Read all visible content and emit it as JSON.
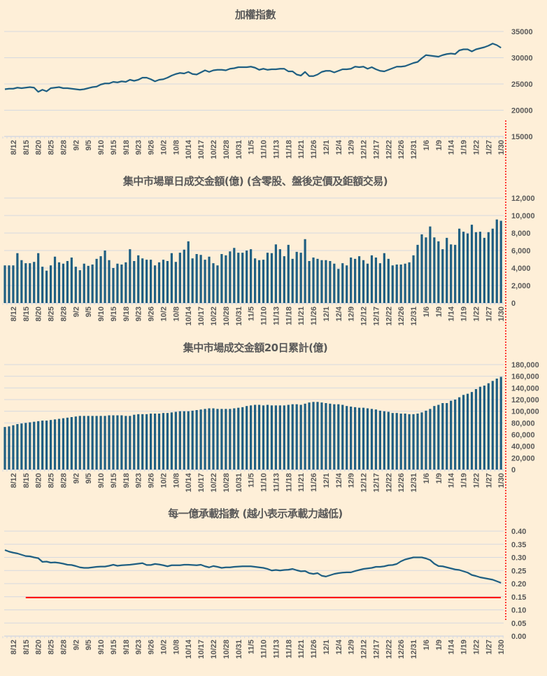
{
  "colors": {
    "background": "#FEEFD8",
    "series": "#1F5F82",
    "grid": "#D5D9E0",
    "threshold": "#FF0000",
    "divider": "#FF0000",
    "text": "#595959"
  },
  "chart_data": [
    {
      "type": "line",
      "title": "加權指數",
      "ylim": [
        15000,
        35000
      ],
      "yticks": [
        "35000",
        "30000",
        "25000",
        "20000",
        "15000"
      ],
      "ytick_values": [
        35000,
        30000,
        25000,
        20000,
        15000
      ],
      "values": [
        24000,
        24100,
        24100,
        24300,
        24200,
        24300,
        24400,
        24300,
        23500,
        23900,
        23600,
        24200,
        24300,
        24400,
        24200,
        24200,
        24100,
        24000,
        23900,
        24000,
        24200,
        24400,
        24500,
        24900,
        25100,
        25100,
        25400,
        25300,
        25500,
        25400,
        25800,
        25600,
        25800,
        26200,
        26200,
        25900,
        25500,
        25800,
        25900,
        26200,
        26600,
        26900,
        27100,
        27000,
        27300,
        26900,
        26800,
        27200,
        27600,
        27300,
        27600,
        27700,
        27700,
        27600,
        27900,
        28000,
        28200,
        28200,
        28200,
        28300,
        28100,
        27700,
        27900,
        27700,
        27800,
        27800,
        27900,
        27900,
        27400,
        27400,
        26800,
        26600,
        27300,
        26500,
        26500,
        26800,
        27300,
        27500,
        27500,
        27200,
        27500,
        27800,
        27800,
        27900,
        28300,
        28200,
        28300,
        27900,
        28200,
        27800,
        27500,
        27400,
        27700,
        28000,
        28300,
        28300,
        28400,
        28700,
        29000,
        29200,
        29900,
        30500,
        30400,
        30300,
        30200,
        30500,
        30700,
        30800,
        30700,
        31400,
        31600,
        31600,
        31200,
        31600,
        31800,
        32000,
        32300,
        32700,
        32400,
        31900
      ]
    },
    {
      "type": "bar",
      "title": "集中市場單日成交金額(億) (含零股、盤後定價及鉅額交易)",
      "ylim": [
        0,
        12000
      ],
      "yticks": [
        "12,000",
        "10,000",
        "8,000",
        "6,000",
        "4,000",
        "2,000",
        "0"
      ],
      "ytick_values": [
        12000,
        10000,
        8000,
        6000,
        4000,
        2000,
        0
      ],
      "values": [
        4300,
        4300,
        4300,
        5700,
        4900,
        4550,
        4550,
        4700,
        5700,
        4150,
        3700,
        4300,
        5300,
        4650,
        4500,
        4800,
        5200,
        4150,
        3750,
        4500,
        4250,
        4400,
        5050,
        5350,
        6000,
        4900,
        4000,
        4500,
        4400,
        4650,
        6150,
        4800,
        5450,
        5100,
        4950,
        4950,
        4300,
        4650,
        4950,
        4800,
        5700,
        4700,
        5750,
        6100,
        7050,
        5100,
        5600,
        5500,
        4950,
        5300,
        4550,
        4300,
        5600,
        5450,
        5900,
        6300,
        5750,
        5750,
        6000,
        6150,
        5100,
        4900,
        4950,
        5750,
        5700,
        6700,
        6150,
        5350,
        6650,
        5050,
        5850,
        5750,
        7300,
        4800,
        5200,
        5050,
        4900,
        4900,
        4800,
        4500,
        3900,
        4550,
        4300,
        5200,
        5050,
        5350,
        4900,
        4500,
        5450,
        5200,
        4550,
        5700,
        5050,
        4300,
        4400,
        4400,
        4500,
        4650,
        5450,
        6650,
        7850,
        7500,
        8750,
        7500,
        7050,
        6150,
        7450,
        6700,
        6650,
        8500,
        8150,
        7950,
        8950,
        8100,
        8150,
        7450,
        8100,
        8500,
        9550,
        9400
      ]
    },
    {
      "type": "bar",
      "title": "集中市場成交金額20日累計(億)",
      "ylim": [
        0,
        180000
      ],
      "yticks": [
        "180,000",
        "160,000",
        "140,000",
        "120,000",
        "100,000",
        "80,000",
        "60,000",
        "40,000",
        "20,000",
        "0"
      ],
      "ytick_values": [
        180000,
        160000,
        140000,
        120000,
        100000,
        80000,
        60000,
        40000,
        20000,
        0
      ],
      "values": [
        73000,
        74000,
        76000,
        78000,
        79000,
        80000,
        81000,
        82000,
        83000,
        84000,
        84000,
        85000,
        86000,
        87000,
        88000,
        89000,
        90000,
        91000,
        92000,
        92000,
        92000,
        92000,
        92000,
        92000,
        92000,
        93000,
        93000,
        93000,
        93000,
        92000,
        92000,
        94000,
        95000,
        95000,
        95000,
        96000,
        96000,
        96000,
        97000,
        97000,
        98000,
        99000,
        100000,
        100000,
        100000,
        101000,
        102000,
        103000,
        104000,
        105000,
        105000,
        104000,
        104000,
        104000,
        104000,
        105000,
        106000,
        107000,
        109000,
        110000,
        111000,
        111000,
        110000,
        111000,
        110000,
        110000,
        110000,
        110000,
        111000,
        112000,
        112000,
        111000,
        113000,
        115000,
        116000,
        116000,
        115000,
        114000,
        113000,
        112000,
        112000,
        111000,
        109000,
        108000,
        107000,
        106000,
        106000,
        105000,
        104000,
        103000,
        101000,
        100000,
        99000,
        97000,
        97000,
        96000,
        96000,
        95000,
        95000,
        96000,
        98000,
        101000,
        104000,
        109000,
        111000,
        114000,
        114000,
        118000,
        120000,
        124000,
        128000,
        130000,
        133000,
        138000,
        142000,
        144000,
        148000,
        152000,
        156000,
        159000
      ]
    },
    {
      "type": "line",
      "title": "每一億承載指數 (越小表示承載力越低)",
      "ylim": [
        0,
        0.4
      ],
      "yticks": [
        "0.40",
        "0.35",
        "0.30",
        "0.25",
        "0.20",
        "0.15",
        "0.10",
        "0.05",
        "0.00"
      ],
      "ytick_values": [
        0.4,
        0.35,
        0.3,
        0.25,
        0.2,
        0.15,
        0.1,
        0.05,
        0
      ],
      "threshold": 0.147,
      "threshold_start_index": 5,
      "values": [
        0.328,
        0.322,
        0.318,
        0.315,
        0.31,
        0.305,
        0.304,
        0.3,
        0.297,
        0.283,
        0.284,
        0.28,
        0.281,
        0.279,
        0.276,
        0.272,
        0.271,
        0.267,
        0.262,
        0.26,
        0.26,
        0.262,
        0.264,
        0.265,
        0.265,
        0.268,
        0.272,
        0.268,
        0.27,
        0.271,
        0.272,
        0.274,
        0.276,
        0.278,
        0.271,
        0.271,
        0.275,
        0.273,
        0.27,
        0.266,
        0.27,
        0.27,
        0.27,
        0.272,
        0.272,
        0.271,
        0.27,
        0.272,
        0.266,
        0.262,
        0.267,
        0.264,
        0.26,
        0.262,
        0.262,
        0.264,
        0.265,
        0.266,
        0.266,
        0.266,
        0.264,
        0.262,
        0.26,
        0.256,
        0.25,
        0.252,
        0.25,
        0.252,
        0.253,
        0.256,
        0.251,
        0.247,
        0.248,
        0.24,
        0.237,
        0.24,
        0.23,
        0.227,
        0.232,
        0.237,
        0.24,
        0.242,
        0.243,
        0.243,
        0.248,
        0.252,
        0.256,
        0.258,
        0.26,
        0.264,
        0.264,
        0.266,
        0.27,
        0.271,
        0.275,
        0.285,
        0.292,
        0.296,
        0.3,
        0.3,
        0.3,
        0.296,
        0.29,
        0.276,
        0.267,
        0.266,
        0.262,
        0.258,
        0.254,
        0.252,
        0.247,
        0.242,
        0.233,
        0.229,
        0.224,
        0.221,
        0.218,
        0.215,
        0.209,
        0.203
      ]
    }
  ],
  "x_labels": [
    "8/12",
    "8/15",
    "8/20",
    "8/25",
    "8/28",
    "9/2",
    "9/5",
    "9/10",
    "9/15",
    "9/18",
    "9/23",
    "9/26",
    "10/2",
    "10/8",
    "10/14",
    "10/17",
    "10/22",
    "10/28",
    "10/31",
    "11/5",
    "11/10",
    "11/13",
    "11/18",
    "11/21",
    "11/26",
    "12/1",
    "12/4",
    "12/9",
    "12/12",
    "12/17",
    "12/22",
    "12/26",
    "12/31",
    "1/6",
    "1/9",
    "1/14",
    "1/19",
    "1/22",
    "1/27",
    "1/30"
  ]
}
